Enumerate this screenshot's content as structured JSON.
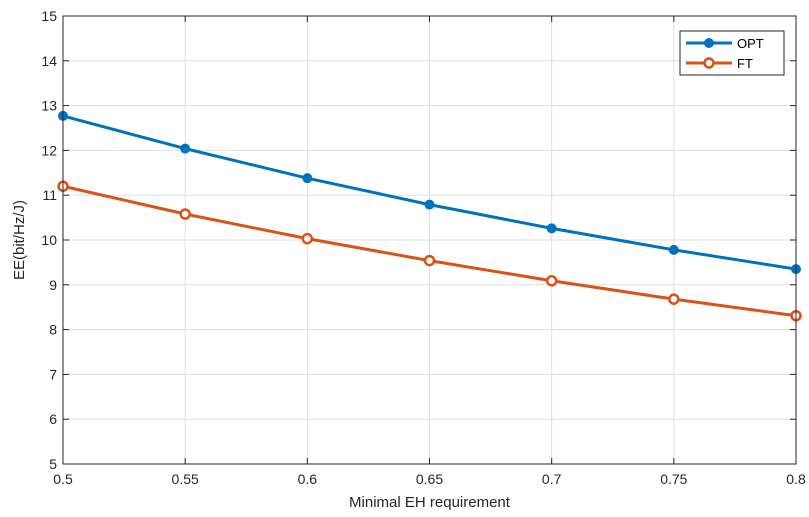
{
  "chart_data": {
    "type": "line",
    "x": [
      0.5,
      0.55,
      0.6,
      0.65,
      0.7,
      0.75,
      0.8
    ],
    "x_tick_labels": [
      "0.5",
      "0.55",
      "0.6",
      "0.65",
      "0.7",
      "0.75",
      "0.8"
    ],
    "y_ticks": [
      5,
      6,
      7,
      8,
      9,
      10,
      11,
      12,
      13,
      14,
      15
    ],
    "series": [
      {
        "name": "OPT",
        "color": "#0072BD",
        "marker": "filled-circle",
        "values": [
          12.77,
          12.04,
          11.38,
          10.79,
          10.26,
          9.78,
          9.35
        ]
      },
      {
        "name": "FT",
        "color": "#D95319",
        "marker": "open-circle",
        "values": [
          11.2,
          10.58,
          10.03,
          9.54,
          9.09,
          8.68,
          8.31
        ]
      }
    ],
    "xlabel": "Minimal  EH  requirement",
    "ylabel": "EE(bit/Hz/J)",
    "xlim": [
      0.5,
      0.8
    ],
    "ylim": [
      5,
      15
    ],
    "grid": true,
    "legend_position": "top-right"
  }
}
